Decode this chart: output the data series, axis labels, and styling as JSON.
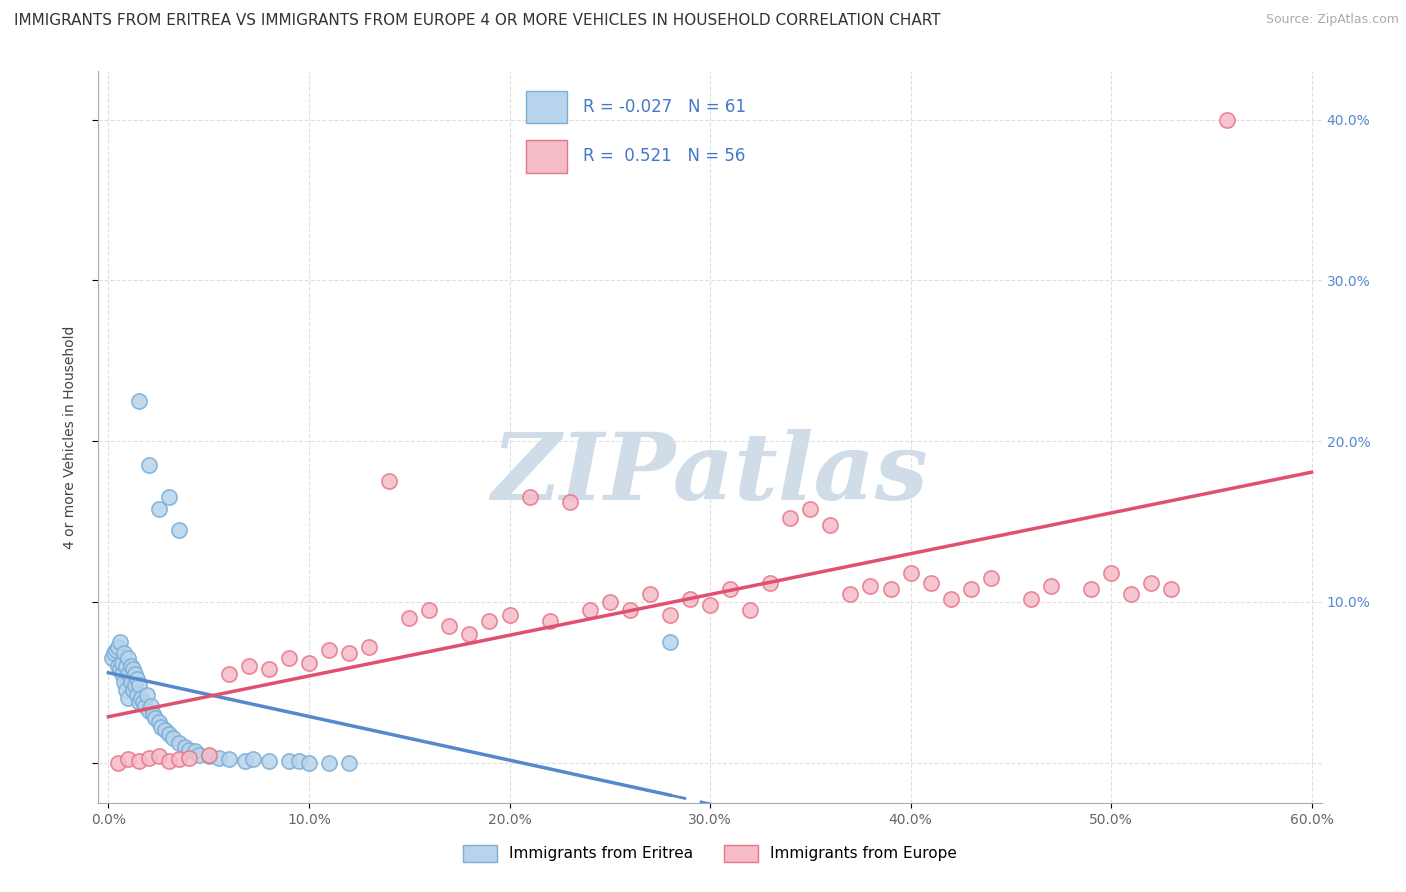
{
  "title": "IMMIGRANTS FROM ERITREA VS IMMIGRANTS FROM EUROPE 4 OR MORE VEHICLES IN HOUSEHOLD CORRELATION CHART",
  "source": "Source: ZipAtlas.com",
  "ylabel": "4 or more Vehicles in Household",
  "legend_label_1": "Immigrants from Eritrea",
  "legend_label_2": "Immigrants from Europe",
  "r1": -0.027,
  "n1": 61,
  "r2": 0.521,
  "n2": 56,
  "xlim": [
    -0.005,
    0.605
  ],
  "ylim": [
    -0.025,
    0.43
  ],
  "xticks": [
    0.0,
    0.1,
    0.2,
    0.3,
    0.4,
    0.5,
    0.6
  ],
  "xticklabels": [
    "0.0%",
    "10.0%",
    "20.0%",
    "30.0%",
    "40.0%",
    "50.0%",
    "60.0%"
  ],
  "yticks": [
    0.0,
    0.1,
    0.2,
    0.3,
    0.4
  ],
  "yticklabels_right": [
    "",
    "10.0%",
    "20.0%",
    "30.0%",
    "40.0%"
  ],
  "color_eritrea_fill": "#b8d4ec",
  "color_eritrea_edge": "#7aaed6",
  "color_europe_fill": "#f5bcc8",
  "color_europe_edge": "#e8758a",
  "line_color_eritrea": "#5588cc",
  "line_color_europe": "#e05070",
  "watermark_color": "#d0dce8",
  "watermark_text": "ZIPatlas",
  "bg_color": "#ffffff",
  "grid_color": "#cccccc",
  "title_fontsize": 11,
  "axis_label_fontsize": 10,
  "tick_fontsize": 10,
  "right_tick_color": "#5588cc",
  "legend_text_color": "#4477cc",
  "eritrea_x": [
    0.002,
    0.003,
    0.004,
    0.005,
    0.005,
    0.006,
    0.006,
    0.007,
    0.007,
    0.008,
    0.008,
    0.009,
    0.009,
    0.01,
    0.01,
    0.01,
    0.011,
    0.011,
    0.012,
    0.012,
    0.013,
    0.013,
    0.014,
    0.014,
    0.015,
    0.015,
    0.016,
    0.017,
    0.018,
    0.019,
    0.02,
    0.021,
    0.022,
    0.023,
    0.025,
    0.026,
    0.028,
    0.03,
    0.032,
    0.035,
    0.038,
    0.04,
    0.043,
    0.045,
    0.05,
    0.055,
    0.06,
    0.068,
    0.072,
    0.08,
    0.09,
    0.095,
    0.1,
    0.11,
    0.12,
    0.015,
    0.02,
    0.025,
    0.03,
    0.035,
    0.28
  ],
  "eritrea_y": [
    0.065,
    0.068,
    0.07,
    0.06,
    0.072,
    0.058,
    0.075,
    0.055,
    0.062,
    0.05,
    0.068,
    0.045,
    0.06,
    0.04,
    0.055,
    0.065,
    0.05,
    0.06,
    0.045,
    0.058,
    0.048,
    0.055,
    0.042,
    0.052,
    0.038,
    0.048,
    0.04,
    0.038,
    0.035,
    0.042,
    0.032,
    0.035,
    0.03,
    0.028,
    0.025,
    0.022,
    0.02,
    0.018,
    0.015,
    0.012,
    0.01,
    0.008,
    0.007,
    0.005,
    0.004,
    0.003,
    0.002,
    0.001,
    0.002,
    0.001,
    0.001,
    0.001,
    0.0,
    0.0,
    0.0,
    0.225,
    0.185,
    0.158,
    0.165,
    0.145,
    0.075
  ],
  "europe_x": [
    0.005,
    0.01,
    0.015,
    0.02,
    0.025,
    0.03,
    0.035,
    0.04,
    0.05,
    0.06,
    0.07,
    0.08,
    0.09,
    0.1,
    0.11,
    0.12,
    0.13,
    0.14,
    0.15,
    0.16,
    0.17,
    0.18,
    0.19,
    0.2,
    0.21,
    0.22,
    0.23,
    0.24,
    0.25,
    0.26,
    0.27,
    0.28,
    0.29,
    0.3,
    0.31,
    0.32,
    0.33,
    0.34,
    0.35,
    0.36,
    0.37,
    0.38,
    0.39,
    0.4,
    0.41,
    0.42,
    0.43,
    0.44,
    0.46,
    0.47,
    0.49,
    0.5,
    0.51,
    0.52,
    0.53,
    0.558
  ],
  "europe_y": [
    0.0,
    0.002,
    0.001,
    0.003,
    0.004,
    0.001,
    0.002,
    0.003,
    0.005,
    0.055,
    0.06,
    0.058,
    0.065,
    0.062,
    0.07,
    0.068,
    0.072,
    0.175,
    0.09,
    0.095,
    0.085,
    0.08,
    0.088,
    0.092,
    0.165,
    0.088,
    0.162,
    0.095,
    0.1,
    0.095,
    0.105,
    0.092,
    0.102,
    0.098,
    0.108,
    0.095,
    0.112,
    0.152,
    0.158,
    0.148,
    0.105,
    0.11,
    0.108,
    0.118,
    0.112,
    0.102,
    0.108,
    0.115,
    0.102,
    0.11,
    0.108,
    0.118,
    0.105,
    0.112,
    0.108,
    0.4
  ]
}
